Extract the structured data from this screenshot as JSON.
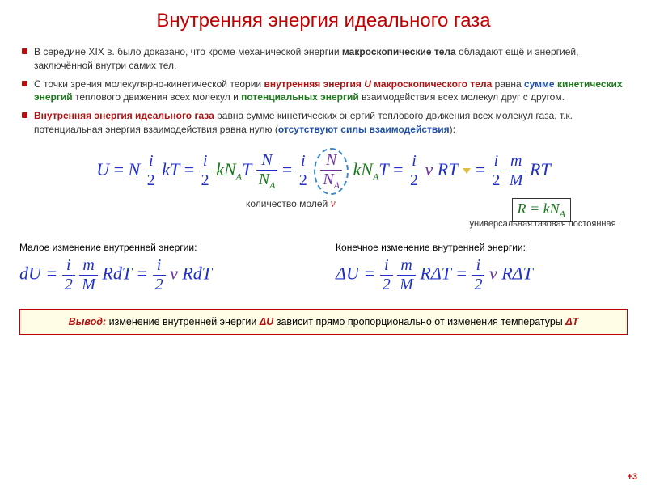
{
  "title": "Внутренняя энергия идеального газа",
  "bullets": {
    "b1_a": "В середине XIX в. было доказано, что кроме механической энергии ",
    "b1_b": "макроскопические тела",
    "b1_c": " обладают ещё и энергией, заключённой внутри самих тел.",
    "b2_a": "С точки зрения молекулярно-кинетической теории ",
    "b2_b": "внутренняя энергия ",
    "b2_u": "U",
    "b2_c": " макроскопического тела",
    "b2_d": " равна ",
    "b2_e": "сумме",
    "b2_f": " ",
    "b2_g": "кинетических энергий",
    "b2_h": " теплового движения всех молекул и ",
    "b2_i": "потенциальных энергий",
    "b2_j": " взаимодействия всех молекул друг с другом.",
    "b3_a": "Внутренняя энергия идеального газа",
    "b3_b": " равна сумме кинетических энергий теплового движения всех молекул газа, т.к. потенциальная энергия взаимодействия равна нулю (",
    "b3_c": "отсутствуют силы взаимодействия",
    "b3_d": "):"
  },
  "formula_parts": {
    "U": "U",
    "eq": " = ",
    "N": "N",
    "i": "i",
    "two": "2",
    "k": "k",
    "T": "T",
    "NA": "N",
    "A": "A",
    "nu": "ν",
    "R": "R",
    "m": "m",
    "M": "M"
  },
  "labels": {
    "moles": "количество молей ",
    "nu": "ν",
    "Rrel": "R = kN",
    "R_A": "A",
    "gas_const": "универсальная газовая постоянная",
    "small_left": "Малое изменение внутренней энергии:",
    "small_right": "Конечное изменение внутренней энергии:"
  },
  "delta_formula": {
    "dU": "dU",
    "DeltaU": "ΔU",
    "RdT": "RdT",
    "RDeltaT": "RΔT"
  },
  "conclusion": {
    "lead": "Вывод:",
    "text_a": " изменение внутренней энергии ",
    "dU": "ΔU",
    "text_b": " зависит прямо пропорционально от изменения температуры ",
    "dT": "ΔT"
  },
  "colors": {
    "title": "#c00000",
    "bullet": "#b01010",
    "blue": "#2030cc",
    "green": "#1a7a1a",
    "purple": "#7030a0",
    "box_bg": "#fffde6",
    "box_border": "#c00000",
    "dashcircle": "#3a8ac7"
  },
  "slidenum": "+3"
}
